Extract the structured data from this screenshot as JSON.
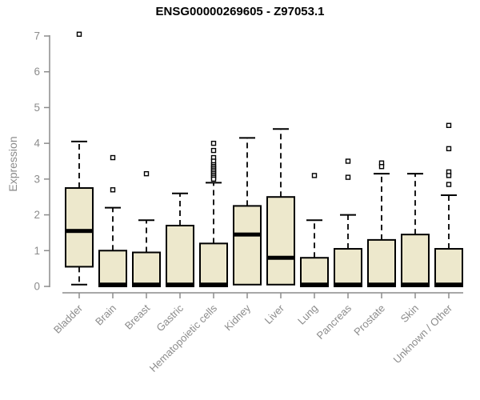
{
  "page": {
    "background": "#FFFFFF"
  },
  "chart_data": {
    "type": "boxplot",
    "title": "ENSG00000269605 - Z97053.1",
    "xlabel": "",
    "ylabel": "Expression",
    "ylim": [
      0,
      7
    ],
    "yticks": [
      0,
      1,
      2,
      3,
      4,
      5,
      6,
      7
    ],
    "grid": false,
    "legend": false,
    "categories": [
      "Bladder",
      "Brain",
      "Breast",
      "Gastric",
      "Hematopoietic cells",
      "Kidney",
      "Liver",
      "Lung",
      "Pancreas",
      "Prostate",
      "Skin",
      "Unknown / Other"
    ],
    "series": [
      {
        "category": "Bladder",
        "whisker_low": 0.05,
        "q1": 0.55,
        "median": 1.55,
        "q3": 2.75,
        "whisker_high": 4.05,
        "outliers": [
          7.05
        ]
      },
      {
        "category": "Brain",
        "whisker_low": 0,
        "q1": 0,
        "median": 0.05,
        "q3": 1.0,
        "whisker_high": 2.2,
        "outliers": [
          3.6,
          2.7
        ]
      },
      {
        "category": "Breast",
        "whisker_low": 0,
        "q1": 0,
        "median": 0.05,
        "q3": 0.95,
        "whisker_high": 1.85,
        "outliers": [
          3.15
        ]
      },
      {
        "category": "Gastric",
        "whisker_low": 0,
        "q1": 0,
        "median": 0.05,
        "q3": 1.7,
        "whisker_high": 2.6,
        "outliers": []
      },
      {
        "category": "Hematopoietic cells",
        "whisker_low": 0,
        "q1": 0,
        "median": 0.05,
        "q3": 1.2,
        "whisker_high": 2.9,
        "outliers": [
          4.0,
          3.8,
          3.6,
          3.5,
          3.4,
          3.35,
          3.3,
          3.25,
          3.2,
          3.15,
          3.1,
          3.05,
          3.0
        ]
      },
      {
        "category": "Kidney",
        "whisker_low": 0.05,
        "q1": 0.05,
        "median": 1.45,
        "q3": 2.25,
        "whisker_high": 4.15,
        "outliers": []
      },
      {
        "category": "Liver",
        "whisker_low": 0.05,
        "q1": 0.05,
        "median": 0.8,
        "q3": 2.5,
        "whisker_high": 4.4,
        "outliers": []
      },
      {
        "category": "Lung",
        "whisker_low": 0,
        "q1": 0,
        "median": 0.05,
        "q3": 0.8,
        "whisker_high": 1.85,
        "outliers": [
          3.1
        ]
      },
      {
        "category": "Pancreas",
        "whisker_low": 0,
        "q1": 0,
        "median": 0.05,
        "q3": 1.05,
        "whisker_high": 2.0,
        "outliers": [
          3.5,
          3.05
        ]
      },
      {
        "category": "Prostate",
        "whisker_low": 0,
        "q1": 0,
        "median": 0.05,
        "q3": 1.3,
        "whisker_high": 3.15,
        "outliers": [
          3.45,
          3.35
        ]
      },
      {
        "category": "Skin",
        "whisker_low": 0,
        "q1": 0,
        "median": 0.05,
        "q3": 1.45,
        "whisker_high": 3.15,
        "outliers": []
      },
      {
        "category": "Unknown / Other",
        "whisker_low": 0,
        "q1": 0,
        "median": 0.05,
        "q3": 1.05,
        "whisker_high": 2.55,
        "outliers": [
          4.5,
          3.85,
          3.2,
          3.1,
          2.85
        ]
      }
    ],
    "style": {
      "box_fill": "#EDE8CC",
      "box_border": "#000000",
      "median_color": "#000000",
      "whisker_color": "#000000",
      "outlier_fill": "#FFFFFF",
      "outlier_border": "#000000",
      "axis_color": "#8C8C8C",
      "tick_label_color": "#8C8C8C",
      "title_color": "#000000"
    }
  }
}
